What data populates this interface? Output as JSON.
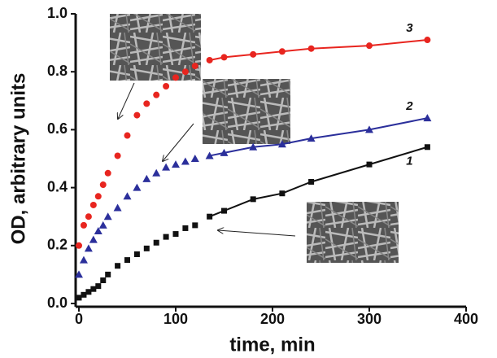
{
  "chart_data": {
    "type": "scatter",
    "xlabel": "time, min",
    "ylabel": "OD, arbitrary units",
    "xlim": [
      0,
      400
    ],
    "xticks": [
      0,
      100,
      200,
      300,
      400
    ],
    "ylim": [
      0,
      1.0
    ],
    "yticks": [
      {
        "value": 0,
        "label": "0.0"
      },
      0.2,
      0.4,
      0.6,
      0.8,
      {
        "value": 1.0,
        "label": "1.0"
      }
    ],
    "x": [
      0,
      5,
      10,
      15,
      20,
      25,
      30,
      40,
      50,
      60,
      70,
      80,
      90,
      100,
      110,
      120,
      135,
      150,
      180,
      210,
      240,
      300,
      360
    ],
    "series": [
      {
        "name": "1",
        "color": "#111111",
        "marker": "square",
        "values": [
          0.02,
          0.03,
          0.04,
          0.05,
          0.06,
          0.08,
          0.1,
          0.13,
          0.15,
          0.17,
          0.19,
          0.21,
          0.23,
          0.24,
          0.26,
          0.27,
          0.3,
          0.32,
          0.36,
          0.38,
          0.42,
          0.48,
          0.54
        ]
      },
      {
        "name": "2",
        "color": "#2b2f9b",
        "marker": "triangle",
        "values": [
          0.1,
          0.15,
          0.19,
          0.22,
          0.25,
          0.27,
          0.3,
          0.33,
          0.37,
          0.4,
          0.43,
          0.45,
          0.47,
          0.48,
          0.49,
          0.5,
          0.51,
          0.52,
          0.54,
          0.55,
          0.57,
          0.6,
          0.64
        ]
      },
      {
        "name": "3",
        "color": "#e8251f",
        "marker": "circle",
        "values": [
          0.2,
          0.27,
          0.3,
          0.34,
          0.37,
          0.41,
          0.45,
          0.51,
          0.58,
          0.65,
          0.69,
          0.72,
          0.75,
          0.78,
          0.8,
          0.82,
          0.84,
          0.85,
          0.86,
          0.87,
          0.88,
          0.89,
          0.91
        ]
      }
    ]
  }
}
